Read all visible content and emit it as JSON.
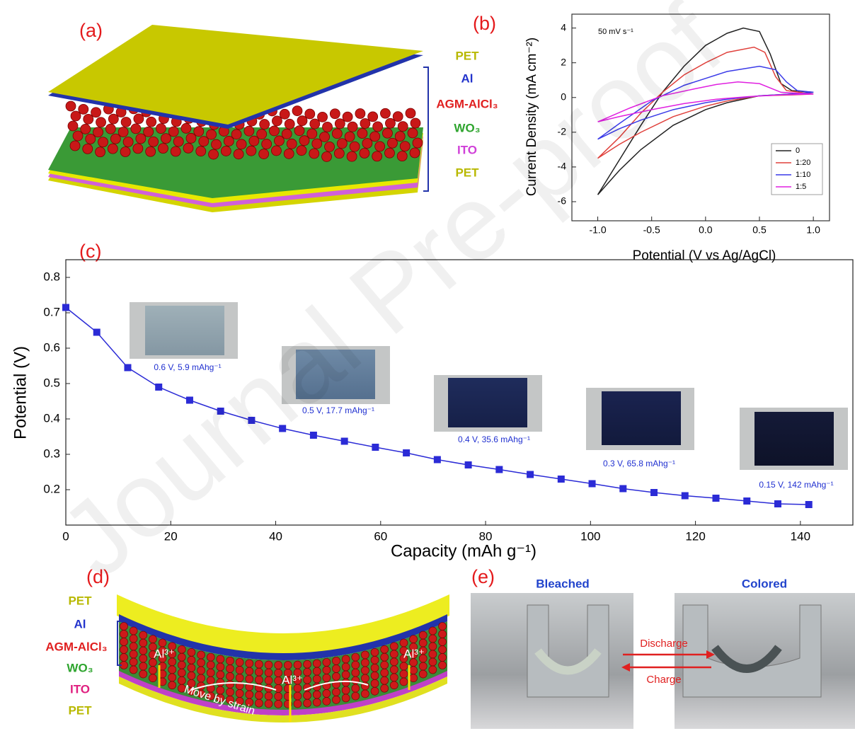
{
  "panel_labels": [
    "(a)",
    "(b)",
    "(c)",
    "(d)",
    "(e)"
  ],
  "watermark": "Journal Pre-proof",
  "panel_a": {
    "layers": [
      "PET",
      "Al",
      "AGM-AlCl₃",
      "WO₃",
      "ITO",
      "PET"
    ]
  },
  "panel_d": {
    "layers": [
      "PET",
      "Al",
      "AGM-AlCl₃",
      "WO₃",
      "ITO",
      "PET"
    ],
    "ion_labels": [
      "Al³⁺",
      "Al³⁺",
      "Al³⁺"
    ],
    "note": "Move by strain"
  },
  "panel_e": {
    "titles": [
      "Bleached",
      "Colored"
    ],
    "arrows": [
      "Discharge",
      "Charge"
    ]
  },
  "chart_data": [
    {
      "type": "line",
      "annotation": "50 mV s⁻¹",
      "y_label": "Current Density (mA cm⁻²)",
      "x_label": "Potential (V vs Ag/AgCl)",
      "xlim": [
        -1.24,
        1.15
      ],
      "ylim": [
        -7.1,
        4.8
      ],
      "xticks": [
        {
          "value": -1,
          "label": "-1.0"
        },
        -0.5,
        {
          "value": 0,
          "label": "0.0"
        },
        0.5,
        {
          "value": 1,
          "label": "1.0"
        }
      ],
      "yticks": [
        4,
        2,
        0,
        -2,
        -4,
        -6
      ],
      "series": [
        {
          "name": "0",
          "color": "#222222",
          "x": [
            -1,
            -0.8,
            -0.6,
            -0.4,
            -0.2,
            0,
            0.2,
            0.35,
            0.5,
            0.6,
            0.7,
            0.8,
            1.0,
            0.8,
            0.5,
            0.2,
            0,
            -0.3,
            -0.6,
            -0.8,
            -1
          ],
          "values": [
            -5.6,
            -3.6,
            -1.6,
            0.3,
            1.8,
            3.0,
            3.7,
            4.0,
            3.8,
            2.5,
            0.8,
            0.4,
            0.3,
            0.2,
            0.1,
            -0.3,
            -0.7,
            -1.6,
            -3.0,
            -4.2,
            -5.6
          ]
        },
        {
          "name": "1:20",
          "color": "#e0413c",
          "x": [
            -1,
            -0.8,
            -0.6,
            -0.4,
            -0.2,
            0,
            0.2,
            0.45,
            0.55,
            0.65,
            0.75,
            1.0,
            0.8,
            0.5,
            0.2,
            0,
            -0.3,
            -0.6,
            -0.8,
            -1
          ],
          "values": [
            -3.5,
            -2.3,
            -0.9,
            0.3,
            1.3,
            2.0,
            2.6,
            2.9,
            2.6,
            1.2,
            0.4,
            0.2,
            0.15,
            0.1,
            -0.2,
            -0.5,
            -1.1,
            -2.0,
            -2.7,
            -3.5
          ]
        },
        {
          "name": "1:10",
          "color": "#3a3ae8",
          "x": [
            -1,
            -0.8,
            -0.5,
            -0.2,
            0,
            0.2,
            0.5,
            0.65,
            0.75,
            0.85,
            1.0,
            0.8,
            0.5,
            0.2,
            0,
            -0.3,
            -0.6,
            -0.8,
            -1
          ],
          "values": [
            -2.4,
            -1.5,
            -0.2,
            0.7,
            1.1,
            1.5,
            1.8,
            1.6,
            0.9,
            0.4,
            0.3,
            0.2,
            0.1,
            -0.1,
            -0.3,
            -0.7,
            -1.3,
            -1.8,
            -2.4
          ]
        },
        {
          "name": "1:5",
          "color": "#e020e0",
          "x": [
            -1,
            -0.7,
            -0.4,
            -0.1,
            0.1,
            0.3,
            0.5,
            0.7,
            1.0,
            0.7,
            0.4,
            0.1,
            -0.2,
            -0.5,
            -0.8,
            -1
          ],
          "values": [
            -1.4,
            -0.6,
            0.1,
            0.5,
            0.75,
            0.9,
            0.8,
            0.3,
            0.2,
            0.15,
            0.05,
            -0.1,
            -0.35,
            -0.7,
            -1.1,
            -1.4
          ]
        }
      ]
    },
    {
      "type": "scatter-line",
      "y_label": "Potential (V)",
      "x_label": "Capacity (mAh g⁻¹)",
      "color": "#2b2bd6",
      "xlim": [
        0,
        150
      ],
      "ylim": [
        0.1,
        0.85
      ],
      "xticks": [
        0,
        20,
        40,
        60,
        80,
        100,
        120,
        140
      ],
      "yticks": [
        0.2,
        0.3,
        0.4,
        0.5,
        0.6,
        0.7,
        0.8
      ],
      "x": [
        0,
        5.9,
        11.8,
        17.7,
        23.6,
        29.5,
        35.4,
        41.3,
        47.2,
        53.1,
        59,
        64.9,
        70.8,
        76.7,
        82.6,
        88.5,
        94.4,
        100.3,
        106.2,
        112.1,
        118,
        123.9,
        129.8,
        135.7,
        141.6
      ],
      "values": [
        0.715,
        0.645,
        0.545,
        0.49,
        0.453,
        0.422,
        0.396,
        0.373,
        0.354,
        0.337,
        0.32,
        0.304,
        0.285,
        0.27,
        0.257,
        0.243,
        0.23,
        0.217,
        0.203,
        0.192,
        0.183,
        0.176,
        0.168,
        0.16,
        0.158
      ],
      "annotations": [
        "0.6 V, 5.9 mAhg⁻¹",
        "0.5 V, 17.7 mAhg⁻¹",
        "0.4 V, 35.6 mAhg⁻¹",
        "0.3 V, 65.8 mAhg⁻¹",
        "0.15 V, 142 mAhg⁻¹"
      ]
    }
  ]
}
